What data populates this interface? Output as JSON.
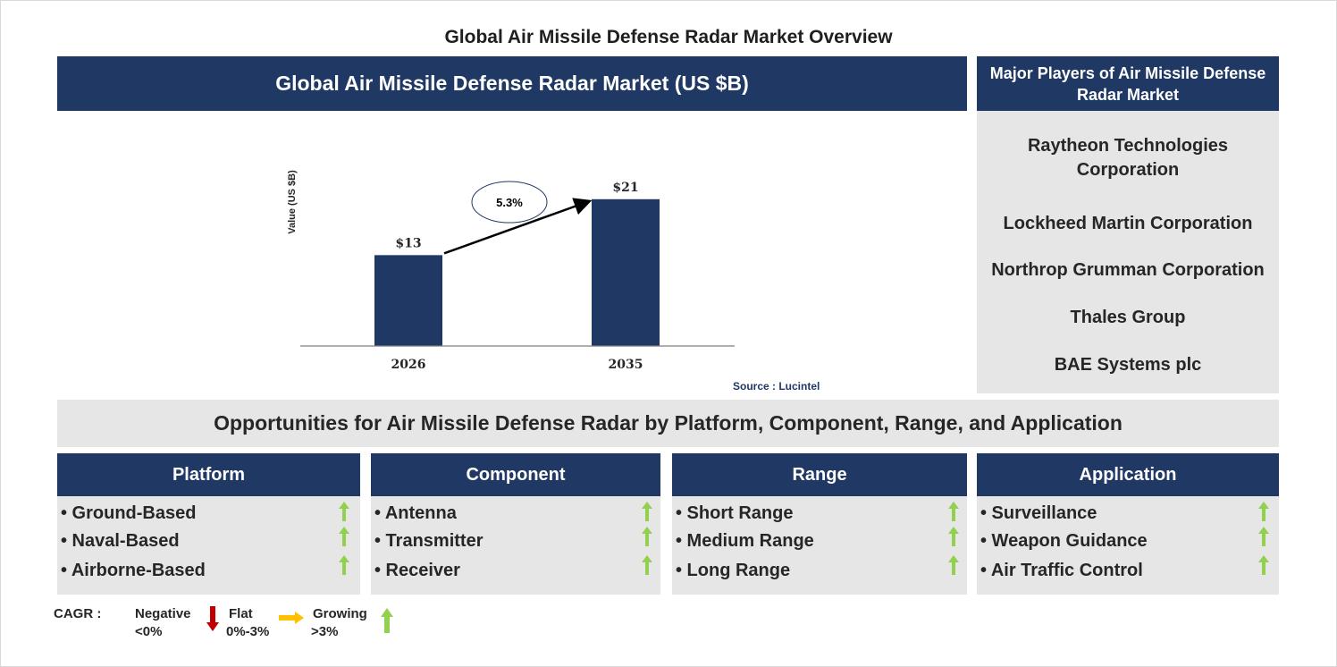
{
  "page": {
    "title": "Global Air Missile Defense Radar Market Overview"
  },
  "market_chart": {
    "header": "Global Air Missile Defense Radar Market (US $B)",
    "ylabel": "Value (US $B)",
    "cagr_label": "5.3%",
    "source": "Source : Lucintel"
  },
  "chart_data": {
    "type": "bar",
    "title": "Global Air Missile Defense Radar Market (US $B)",
    "xlabel": "",
    "ylabel": "Value (US $B)",
    "categories": [
      "2026",
      "2035"
    ],
    "values": [
      13,
      21
    ],
    "value_labels": [
      "$13",
      "$21"
    ],
    "annotation": "5.3%",
    "ylim": [
      0,
      26.6
    ],
    "bar_color": "#1f3864",
    "grid": false
  },
  "players": {
    "header": "Major Players of Air Missile Defense Radar Market",
    "items": [
      "Raytheon Technologies Corporation",
      "Lockheed Martin Corporation",
      "Northrop Grumman Corporation",
      "Thales Group",
      "BAE Systems plc"
    ]
  },
  "opportunities": {
    "header": "Opportunities for Air Missile Defense Radar by Platform, Component, Range, and Application",
    "segments": [
      {
        "title": "Platform",
        "items": [
          "• Ground-Based",
          "• Naval-Based",
          "• Airborne-Based"
        ],
        "trend": "growing"
      },
      {
        "title": "Component",
        "items": [
          "• Antenna",
          "• Transmitter",
          "• Receiver"
        ],
        "trend": "growing"
      },
      {
        "title": "Range",
        "items": [
          "• Short Range",
          "• Medium Range",
          "• Long Range"
        ],
        "trend": "growing"
      },
      {
        "title": "Application",
        "items": [
          "• Surveillance",
          "• Weapon Guidance",
          "• Air Traffic Control"
        ],
        "trend": "growing"
      }
    ]
  },
  "legend": {
    "cagr_label": "CAGR :",
    "negative": {
      "label": "Negative",
      "range": "<0%",
      "color": "#c00000"
    },
    "flat": {
      "label": "Flat",
      "range": "0%-3%",
      "color": "#ffc000"
    },
    "growing": {
      "label": "Growing",
      "range": ">3%",
      "color": "#92d050"
    }
  },
  "colors": {
    "navy": "#1f3864",
    "panel_gray": "#e7e6e6",
    "growth_green": "#92d050"
  }
}
